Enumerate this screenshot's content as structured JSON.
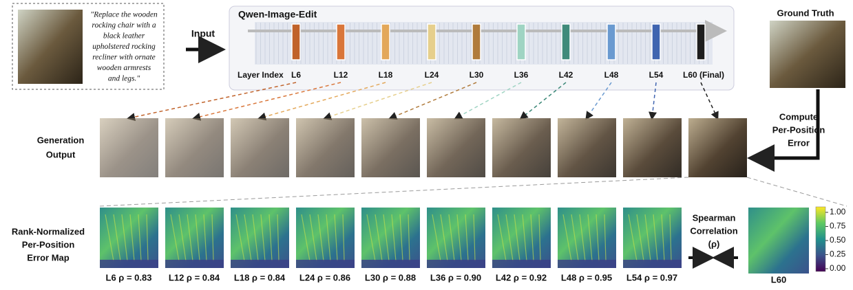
{
  "input": {
    "label": "Input",
    "prompt_lines": [
      "\"Replace the wooden",
      "rocking chair with a",
      "black leather",
      "upholstered rocking",
      "recliner with ornate",
      "wooden armrests",
      "and legs.\""
    ]
  },
  "model": {
    "title": "Qwen-Image-Edit",
    "axis_label": "Layer Index",
    "layers": [
      {
        "label": "L6",
        "color": "#c0622a"
      },
      {
        "label": "L12",
        "color": "#d9763a"
      },
      {
        "label": "L18",
        "color": "#e3a85a"
      },
      {
        "label": "L24",
        "color": "#e6cf8c"
      },
      {
        "label": "L30",
        "color": "#b07b3c"
      },
      {
        "label": "L36",
        "color": "#9fd4c3"
      },
      {
        "label": "L42",
        "color": "#3f8a7a"
      },
      {
        "label": "L48",
        "color": "#6a9ad0"
      },
      {
        "label": "L54",
        "color": "#3f64b0"
      },
      {
        "label": "L60 (Final)",
        "color": "#1e1e1e"
      }
    ]
  },
  "ground_truth": {
    "title": "Ground Truth"
  },
  "compute": {
    "lines": [
      "Compute",
      "Per-Position",
      "Error"
    ]
  },
  "generation": {
    "lines": [
      "Generation",
      "Output"
    ]
  },
  "error_maps": {
    "lines": [
      "Rank-Normalized",
      "Per-Position",
      "Error Map"
    ],
    "captions": [
      "L6 ρ = 0.83",
      "L12 ρ = 0.84",
      "L18 ρ = 0.84",
      "L24 ρ = 0.86",
      "L30 ρ = 0.88",
      "L36 ρ = 0.90",
      "L42 ρ = 0.92",
      "L48 ρ = 0.95",
      "L54 ρ = 0.97"
    ],
    "final_caption": "L60"
  },
  "spearman": {
    "lines": [
      "Spearman",
      "Correlation",
      "(ρ)"
    ]
  },
  "colorbar": {
    "ticks": [
      "1.00",
      "0.75",
      "0.50",
      "0.25",
      "0.00"
    ]
  }
}
